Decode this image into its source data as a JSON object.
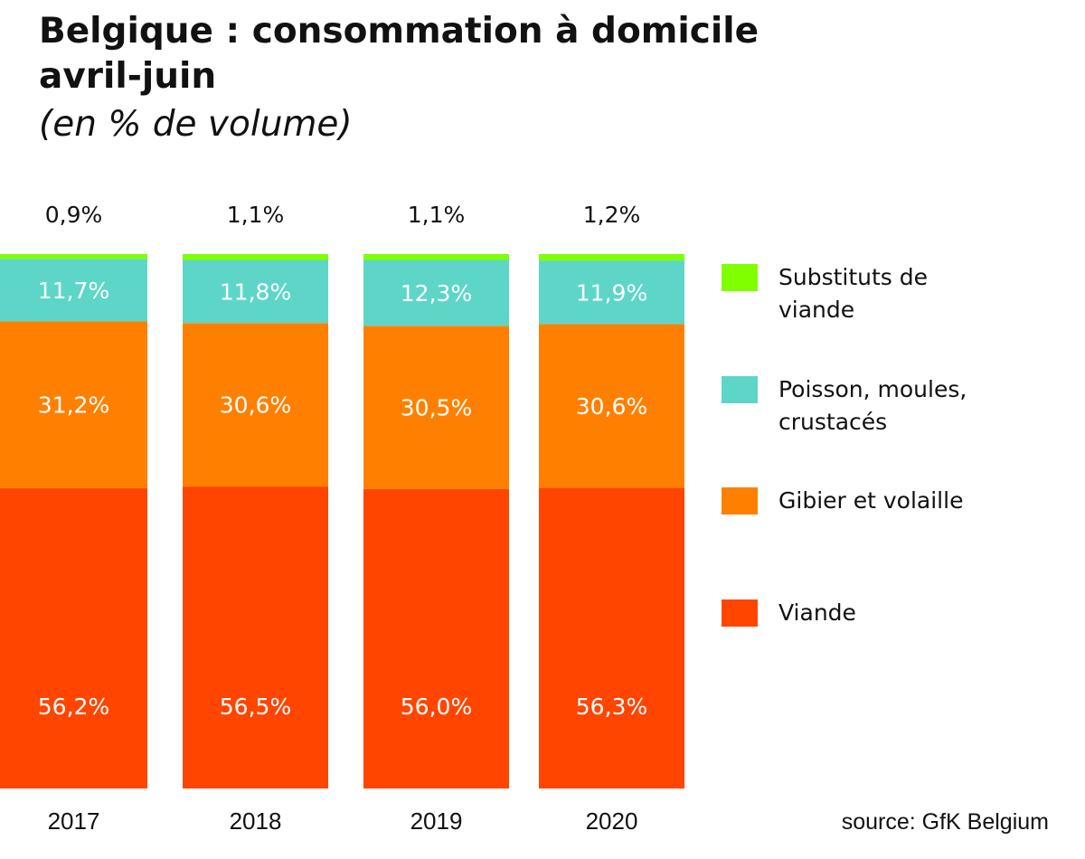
{
  "chart_data": {
    "type": "bar",
    "stacked": true,
    "title_line1": "Belgique : consommation à domicile",
    "title_line2": "avril-juin",
    "subtitle": "(en % de volume)",
    "source": "source: GfK Belgium",
    "categories": [
      "2017",
      "2018",
      "2019",
      "2020"
    ],
    "series": [
      {
        "name": "Viande",
        "color": "#ff4500",
        "values": [
          56.2,
          56.5,
          56.0,
          56.3
        ],
        "labels": [
          "56,2%",
          "56,5%",
          "56,0%",
          "56,3%"
        ]
      },
      {
        "name": "Gibier et volaille",
        "color": "#ff8000",
        "values": [
          31.2,
          30.6,
          30.5,
          30.6
        ],
        "labels": [
          "31,2%",
          "30,6%",
          "30,5%",
          "30,6%"
        ]
      },
      {
        "name": "Poisson, moules, crustacés",
        "color": "#5dd6c8",
        "values": [
          11.7,
          11.8,
          12.3,
          11.9
        ],
        "labels": [
          "11,7%",
          "11,8%",
          "12,3%",
          "11,9%"
        ]
      },
      {
        "name": "Substituts de viande",
        "color": "#7fff00",
        "values": [
          0.9,
          1.1,
          1.1,
          1.2
        ],
        "labels": [
          "0,9%",
          "1,1%",
          "1,1%",
          "1,2%"
        ]
      }
    ],
    "legend": [
      {
        "lines": [
          "Substituts de",
          "viande"
        ],
        "color": "#7fff00"
      },
      {
        "lines": [
          "Poisson, moules,",
          "crustacés"
        ],
        "color": "#5dd6c8"
      },
      {
        "lines": [
          "Gibier et volaille"
        ],
        "color": "#ff8000"
      },
      {
        "lines": [
          "Viande"
        ],
        "color": "#ff4500"
      }
    ]
  }
}
